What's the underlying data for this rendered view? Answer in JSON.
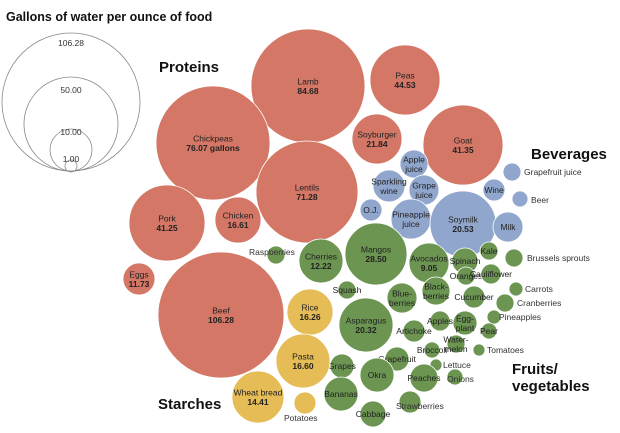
{
  "chart_data": {
    "type": "bubble",
    "title": "Gallons of water per ounce of food",
    "legend": {
      "values": [
        106.28,
        50.0,
        10.0,
        1.0
      ],
      "labels": [
        "106.28",
        "50.00",
        "10.00",
        "1.00"
      ]
    },
    "group_labels": {
      "proteins": "Proteins",
      "beverages": "Beverages",
      "fruits_vegetables_line1": "Fruits/",
      "fruits_vegetables_line2": "vegetables",
      "starches": "Starches"
    },
    "colors": {
      "protein": "#d47766",
      "beverage": "#90a6cc",
      "fruitveg": "#6b9551",
      "starch": "#e5bc55",
      "legend_stroke": "#888888"
    },
    "items": [
      {
        "name": "Lamb",
        "value": 84.68,
        "value_label": "84.68",
        "group": "protein"
      },
      {
        "name": "Peas",
        "value": 44.53,
        "value_label": "44.53",
        "group": "protein"
      },
      {
        "name": "Chickpeas",
        "value": 76.07,
        "value_label": "76.07 gallons",
        "group": "protein"
      },
      {
        "name": "Soyburger",
        "value": 21.84,
        "value_label": "21.84",
        "group": "protein"
      },
      {
        "name": "Goat",
        "value": 41.35,
        "value_label": "41.35",
        "group": "protein"
      },
      {
        "name": "Lentils",
        "value": 71.28,
        "value_label": "71.28",
        "group": "protein"
      },
      {
        "name": "Pork",
        "value": 41.25,
        "value_label": "41.25",
        "group": "protein"
      },
      {
        "name": "Chicken",
        "value": 16.61,
        "value_label": "16.61",
        "group": "protein"
      },
      {
        "name": "Eggs",
        "value": 11.73,
        "value_label": "11.73",
        "group": "protein"
      },
      {
        "name": "Beef",
        "value": 106.28,
        "value_label": "106.28",
        "group": "protein"
      },
      {
        "name": "Apple juice",
        "value": null,
        "group": "beverage"
      },
      {
        "name": "Sparkling wine",
        "value": null,
        "group": "beverage"
      },
      {
        "name": "Grape juice",
        "value": null,
        "group": "beverage"
      },
      {
        "name": "O.J.",
        "value": null,
        "group": "beverage"
      },
      {
        "name": "Pineapple juice",
        "value": null,
        "group": "beverage"
      },
      {
        "name": "Soymilk",
        "value": 20.53,
        "value_label": "20.53",
        "group": "beverage"
      },
      {
        "name": "Wine",
        "value": null,
        "group": "beverage"
      },
      {
        "name": "Milk",
        "value": null,
        "group": "beverage"
      },
      {
        "name": "Beer",
        "value": null,
        "group": "beverage"
      },
      {
        "name": "Grapefruit juice",
        "value": null,
        "group": "beverage"
      },
      {
        "name": "Raspberries",
        "value": null,
        "group": "fruitveg"
      },
      {
        "name": "Cherries",
        "value": 12.22,
        "value_label": "12.22",
        "group": "fruitveg"
      },
      {
        "name": "Mangos",
        "value": 28.5,
        "value_label": "28.50",
        "group": "fruitveg"
      },
      {
        "name": "Avocados",
        "value": 9.05,
        "value_label": "9.05",
        "group": "fruitveg"
      },
      {
        "name": "Kale",
        "value": null,
        "group": "fruitveg"
      },
      {
        "name": "Brussels sprouts",
        "value": null,
        "group": "fruitveg"
      },
      {
        "name": "Spinach",
        "value": null,
        "group": "fruitveg"
      },
      {
        "name": "Oranges",
        "value": null,
        "group": "fruitveg"
      },
      {
        "name": "Cauliflower",
        "value": null,
        "group": "fruitveg"
      },
      {
        "name": "Carrots",
        "value": null,
        "group": "fruitveg"
      },
      {
        "name": "Squash",
        "value": null,
        "group": "fruitveg"
      },
      {
        "name": "Blueberries",
        "value": null,
        "group": "fruitveg"
      },
      {
        "name": "Blackberries",
        "value": null,
        "group": "fruitveg"
      },
      {
        "name": "Cucumber",
        "value": null,
        "group": "fruitveg"
      },
      {
        "name": "Cranberries",
        "value": null,
        "group": "fruitveg"
      },
      {
        "name": "Asparagus",
        "value": 20.32,
        "value_label": "20.32",
        "group": "fruitveg"
      },
      {
        "name": "Apples",
        "value": null,
        "group": "fruitveg"
      },
      {
        "name": "Eggplant",
        "value": null,
        "group": "fruitveg"
      },
      {
        "name": "Pineapples",
        "value": null,
        "group": "fruitveg"
      },
      {
        "name": "Pear",
        "value": null,
        "group": "fruitveg"
      },
      {
        "name": "Artichoke",
        "value": null,
        "group": "fruitveg"
      },
      {
        "name": "Watermelon",
        "value": null,
        "group": "fruitveg"
      },
      {
        "name": "Broccoli",
        "value": null,
        "group": "fruitveg"
      },
      {
        "name": "Tomatoes",
        "value": null,
        "group": "fruitveg"
      },
      {
        "name": "Grapefruit",
        "value": null,
        "group": "fruitveg"
      },
      {
        "name": "Lettuce",
        "value": null,
        "group": "fruitveg"
      },
      {
        "name": "Grapes",
        "value": null,
        "group": "fruitveg"
      },
      {
        "name": "Okra",
        "value": null,
        "group": "fruitveg"
      },
      {
        "name": "Peaches",
        "value": null,
        "group": "fruitveg"
      },
      {
        "name": "Onions",
        "value": null,
        "group": "fruitveg"
      },
      {
        "name": "Bananas",
        "value": null,
        "group": "fruitveg"
      },
      {
        "name": "Cabbage",
        "value": null,
        "group": "fruitveg"
      },
      {
        "name": "Strawberries",
        "value": null,
        "group": "fruitveg"
      },
      {
        "name": "Rice",
        "value": 16.26,
        "value_label": "16.26",
        "group": "starch"
      },
      {
        "name": "Pasta",
        "value": 16.6,
        "value_label": "16.60",
        "group": "starch"
      },
      {
        "name": "Wheat bread",
        "value": 14.41,
        "value_label": "14.41",
        "group": "starch"
      },
      {
        "name": "Potatoes",
        "value": null,
        "group": "starch"
      }
    ]
  }
}
